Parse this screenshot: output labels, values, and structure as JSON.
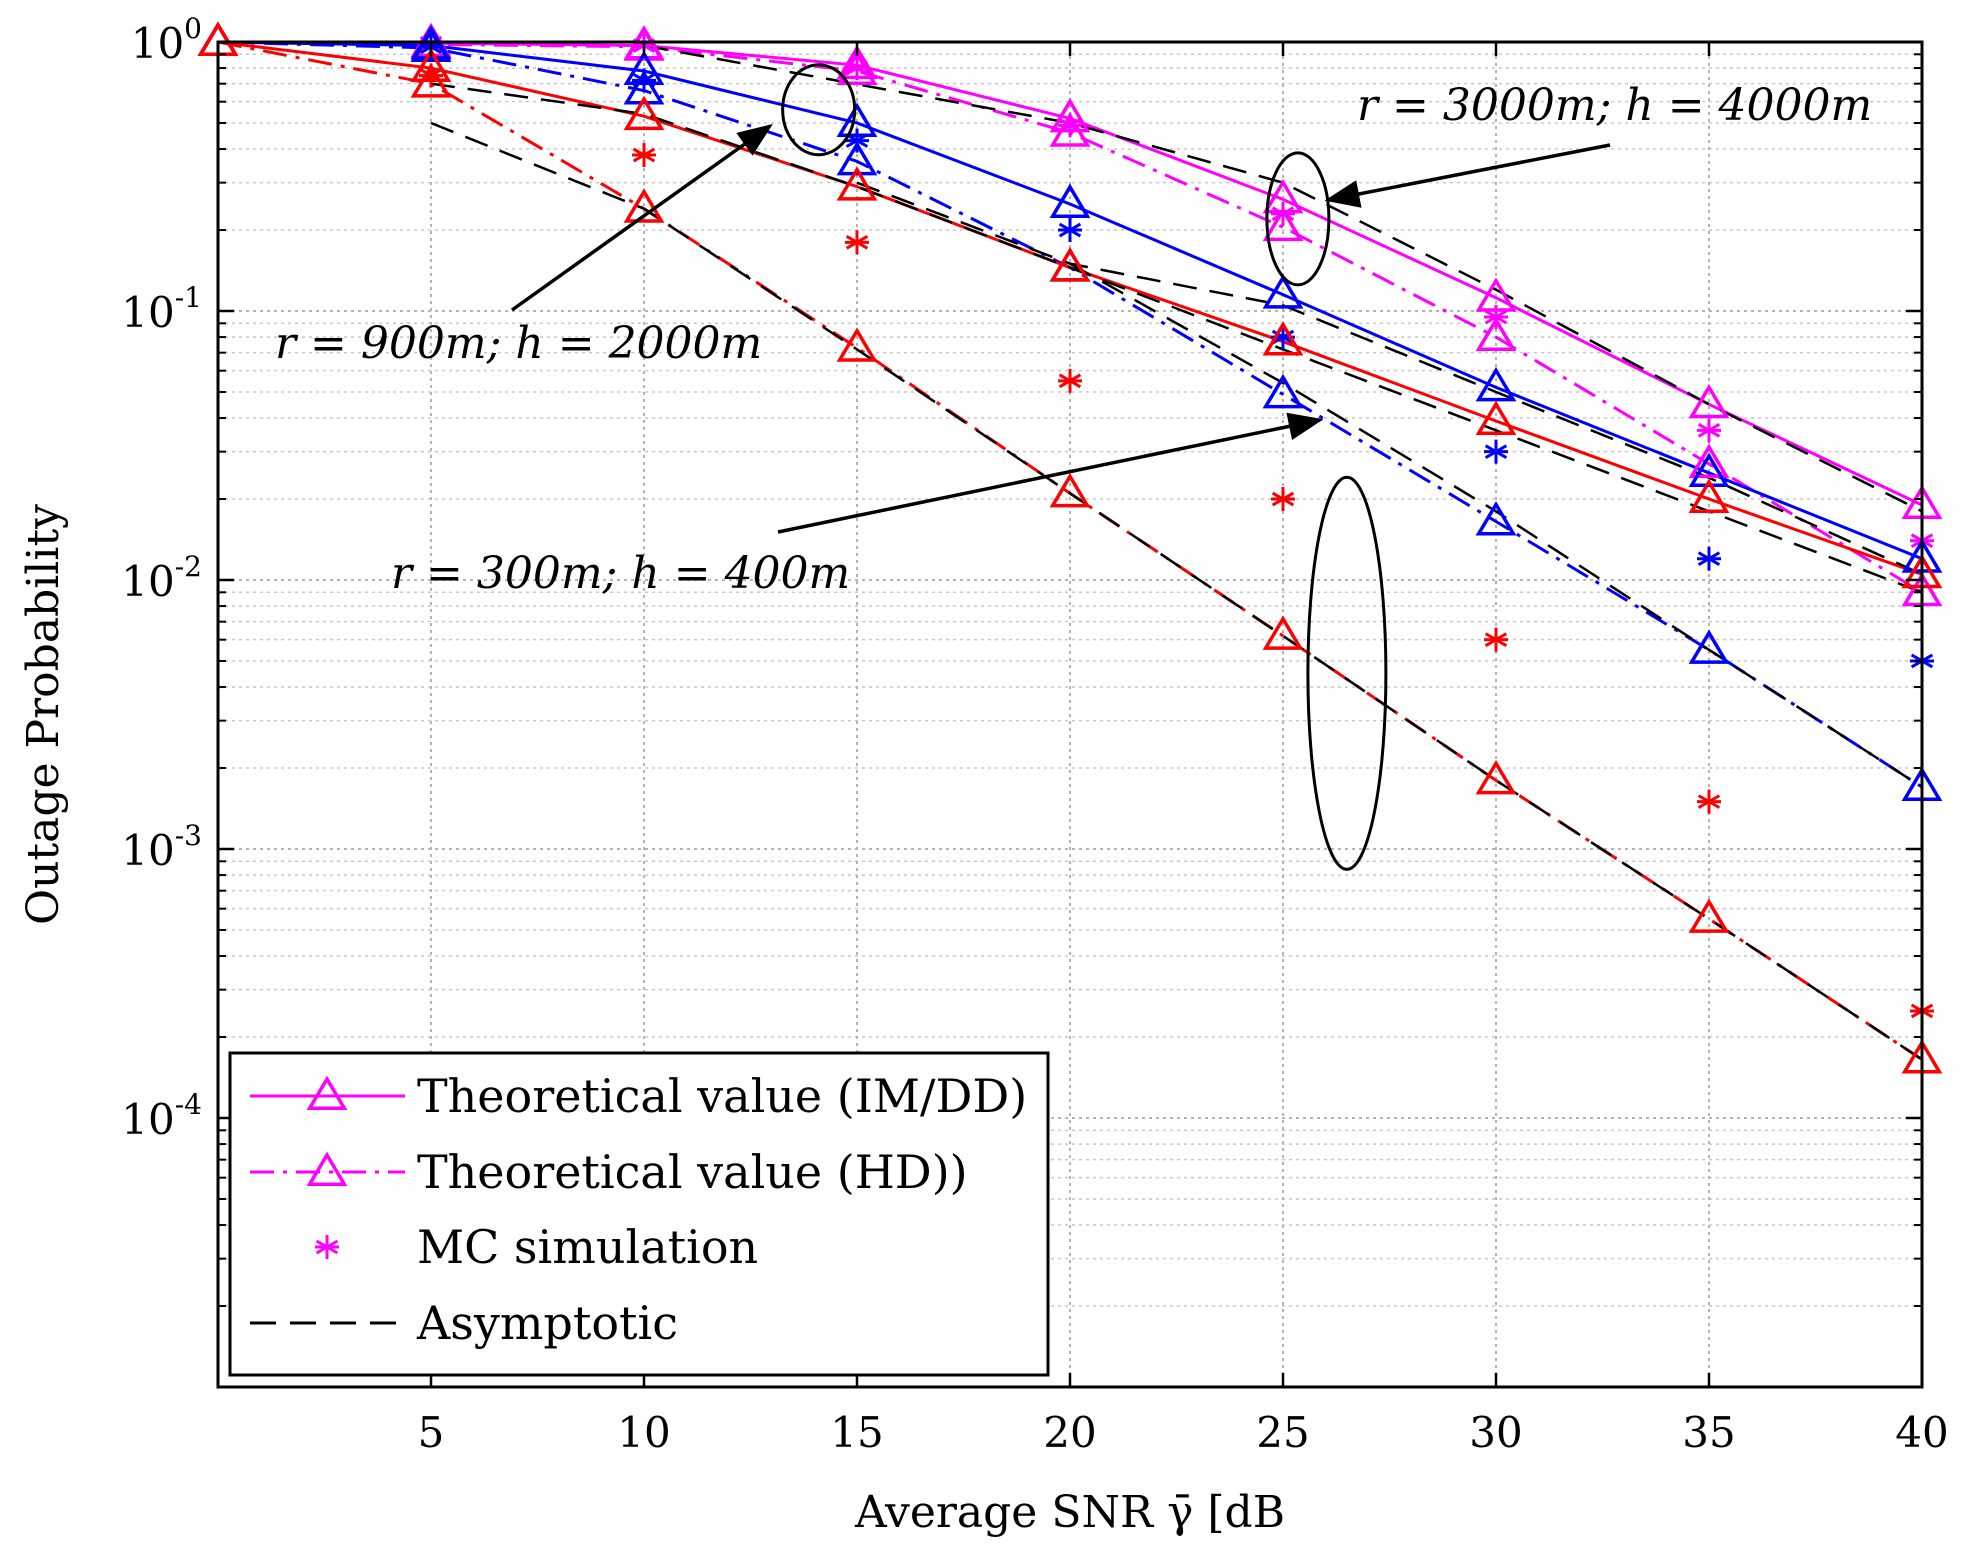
{
  "chart_data": {
    "type": "line",
    "xlabel": "Average SNR γ̄ [dB",
    "ylabel": "Outage Probability",
    "xlim": [
      0,
      40
    ],
    "ylim": [
      1e-05,
      1
    ],
    "yscale": "log",
    "grid": true,
    "legend_position": "bottom-left",
    "x_ticks": [
      "5",
      "10",
      "15",
      "20",
      "25",
      "30",
      "35",
      "40"
    ],
    "y_ticks": [
      {
        "base": "10",
        "exp": "0",
        "value": 1
      },
      {
        "base": "10",
        "exp": "-1",
        "value": 0.1
      },
      {
        "base": "10",
        "exp": "-2",
        "value": 0.01
      },
      {
        "base": "10",
        "exp": "-3",
        "value": 0.001
      },
      {
        "base": "10",
        "exp": "-4",
        "value": 0.0001
      }
    ],
    "x": [
      0,
      5,
      10,
      15,
      20,
      25,
      30,
      35,
      40
    ],
    "series": [
      {
        "group": "r3000h4000",
        "kind": "IM/DD",
        "color": "#ff00ff",
        "style": "solid",
        "values": [
          1.0,
          0.99,
          0.97,
          0.82,
          0.52,
          0.26,
          0.112,
          0.045,
          0.019
        ]
      },
      {
        "group": "r3000h4000",
        "kind": "HD",
        "color": "#ff00ff",
        "style": "dashdot",
        "values": [
          1.0,
          0.98,
          0.96,
          0.78,
          0.46,
          0.205,
          0.08,
          0.027,
          0.009
        ]
      },
      {
        "group": "r900h2000",
        "kind": "IM/DD",
        "color": "#0000ff",
        "style": "solid",
        "values": [
          1.0,
          0.97,
          0.78,
          0.5,
          0.25,
          0.115,
          0.052,
          0.025,
          0.012
        ]
      },
      {
        "group": "r900h2000",
        "kind": "HD",
        "color": "#0000ff",
        "style": "dashdot",
        "values": [
          1.0,
          0.95,
          0.66,
          0.36,
          0.145,
          0.049,
          0.0165,
          0.0055,
          0.0017
        ]
      },
      {
        "group": "r300h400",
        "kind": "IM/DD",
        "color": "#ff0000",
        "style": "solid",
        "values": [
          1.0,
          0.8,
          0.53,
          0.29,
          0.145,
          0.077,
          0.039,
          0.02,
          0.0105
        ]
      },
      {
        "group": "r300h400",
        "kind": "HD",
        "color": "#ff0000",
        "style": "dashdot",
        "values": [
          1.0,
          0.7,
          0.24,
          0.073,
          0.021,
          0.0062,
          0.0018,
          0.00055,
          0.000165
        ]
      }
    ],
    "asymptotes": [
      {
        "x": [
          10,
          20,
          25,
          30,
          35,
          40
        ],
        "values": [
          0.97,
          0.5,
          0.3,
          0.12,
          0.045,
          0.018
        ]
      },
      {
        "x": [
          15,
          20,
          25,
          30,
          35,
          40
        ],
        "values": [
          0.3,
          0.15,
          0.105,
          0.05,
          0.024,
          0.0105
        ]
      },
      {
        "x": [
          5,
          10,
          15,
          20,
          25,
          30,
          35,
          40
        ],
        "values": [
          0.7,
          0.54,
          0.29,
          0.145,
          0.072,
          0.036,
          0.018,
          0.009
        ]
      },
      {
        "x": [
          20,
          25,
          30,
          35,
          40
        ],
        "values": [
          0.15,
          0.054,
          0.018,
          0.0055,
          0.0017
        ]
      },
      {
        "x": [
          5,
          10,
          15,
          20,
          25,
          30,
          35,
          40
        ],
        "values": [
          0.5,
          0.24,
          0.072,
          0.021,
          0.0062,
          0.0018,
          0.00055,
          0.000165
        ]
      }
    ],
    "mc_points": [
      {
        "color": "#ff00ff",
        "x": [
          5,
          10,
          15,
          20,
          25,
          30,
          35,
          40
        ],
        "values": [
          0.99,
          0.97,
          0.8,
          0.49,
          0.23,
          0.095,
          0.036,
          0.014
        ]
      },
      {
        "color": "#0000ff",
        "x": [
          5,
          10,
          15,
          20,
          25,
          30,
          35,
          40
        ],
        "values": [
          0.96,
          0.72,
          0.43,
          0.2,
          0.08,
          0.03,
          0.012,
          0.005
        ]
      },
      {
        "color": "#ff0000",
        "x": [
          5,
          10,
          15,
          20,
          25,
          30,
          35,
          40
        ],
        "values": [
          0.75,
          0.38,
          0.18,
          0.055,
          0.02,
          0.006,
          0.0015,
          0.00025
        ]
      }
    ],
    "legend": [
      {
        "label": "Theoretical value (IM/DD)",
        "color": "#ff00ff",
        "style": "solid",
        "marker": "triangle"
      },
      {
        "label": "Theoretical value (HD))",
        "color": "#ff00ff",
        "style": "dashdot",
        "marker": "triangle"
      },
      {
        "label": "MC simulation",
        "color": "#ff00ff",
        "style": "none",
        "marker": "asterisk"
      },
      {
        "label": "Asymptotic",
        "color": "#000000",
        "style": "dashed",
        "marker": "none"
      }
    ],
    "annotations": [
      {
        "text": "r = 3000m; h = 4000m",
        "group": "r3000h4000",
        "points_to": {
          "x": 26,
          "y": 0.32
        }
      },
      {
        "text": "r = 900m; h = 2000m",
        "group": "r900h2000",
        "points_to": {
          "x": 13,
          "y": 0.5
        }
      },
      {
        "text": "r = 300m; h = 400m",
        "group": "r300h400",
        "points_to": {
          "x": 26,
          "y": 0.04
        }
      }
    ]
  }
}
